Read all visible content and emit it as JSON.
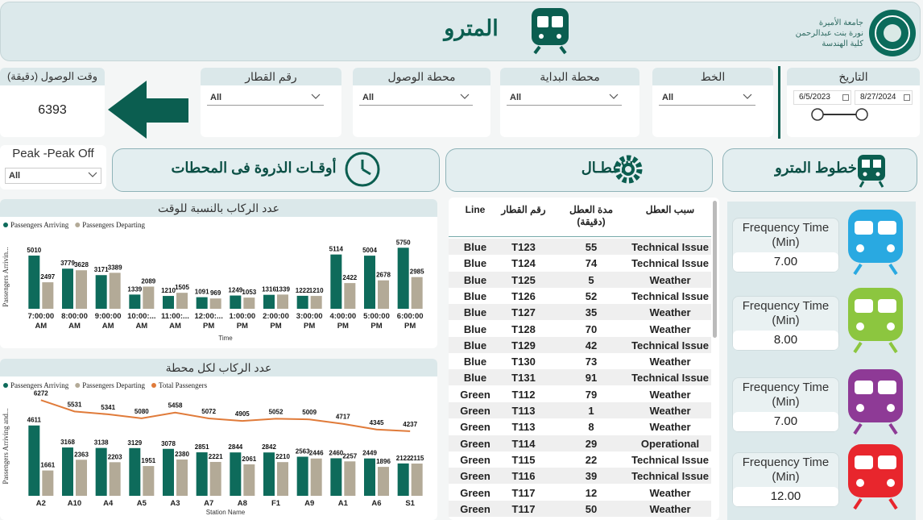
{
  "header": {
    "title": "المترو",
    "logo_lines": [
      "جامعة الأميرة",
      "نورة بنت عبدالرحمن",
      "كلية الهندسة"
    ]
  },
  "kpi": {
    "title": "وقت الوصول (دقيقة)",
    "value": 6393
  },
  "filters": [
    {
      "title": "رقم القطار",
      "value": "All"
    },
    {
      "title": "محطة الوصول",
      "value": "All"
    },
    {
      "title": "محطة البداية",
      "value": "All"
    },
    {
      "title": "الخط",
      "value": "All"
    }
  ],
  "date_filter": {
    "title": "التاريخ",
    "start": "6/5/2023",
    "end": "8/27/2024"
  },
  "peak_filter": {
    "title": "Peak -Peak Off",
    "value": "All"
  },
  "sections": [
    "أوقـات الذروة فى المحطات",
    "الاعطـال",
    "خطوط المترو"
  ],
  "chart_data": [
    {
      "type": "bar",
      "title": "عدد الركاب بالنسبة للوقت",
      "x_label": "Time",
      "y_label": "Passengers Arrivin...",
      "categories": [
        "7:00:00 AM",
        "8:00:00 AM",
        "9:00:00 AM",
        "10:00:... AM",
        "11:00:... AM",
        "12:00:... PM",
        "1:00:00 PM",
        "2:00:00 PM",
        "3:00:00 PM",
        "4:00:00 PM",
        "5:00:00 PM",
        "6:00:00 PM"
      ],
      "series": [
        {
          "name": "Passengers Arriving",
          "color": "#0e6b5b",
          "values": [
            5010,
            3779,
            3171,
            1339,
            1210,
            1091,
            1249,
            1316,
            1222,
            5114,
            5004,
            5750
          ]
        },
        {
          "name": "Passengers Departing",
          "color": "#b3aa97",
          "values": [
            2497,
            3628,
            3389,
            2089,
            1505,
            969,
            1053,
            1339,
            1210,
            2422,
            2678,
            2985
          ]
        }
      ],
      "ylim": [
        0,
        6000
      ]
    },
    {
      "type": "bar",
      "title": "عدد الركاب لكل محطة",
      "x_label": "Station Name",
      "y_label": "Passengers Arriving and...",
      "categories": [
        "A2",
        "A10",
        "A4",
        "A5",
        "A3",
        "A7",
        "A8",
        "F1",
        "A9",
        "A1",
        "A6",
        "S1"
      ],
      "series": [
        {
          "name": "Passengers Arriving",
          "color": "#0e6b5b",
          "values": [
            4611,
            3168,
            3138,
            3129,
            3078,
            2851,
            2844,
            2842,
            2563,
            2460,
            2449,
            2122
          ]
        },
        {
          "name": "Passengers Departing",
          "color": "#b3aa97",
          "values": [
            1661,
            2363,
            2203,
            1951,
            2380,
            2221,
            2061,
            2210,
            2446,
            2257,
            1896,
            2115
          ]
        },
        {
          "name": "Total Passengers",
          "type": "line",
          "color": "#e07b3a",
          "values": [
            6272,
            5531,
            5341,
            5080,
            5458,
            5072,
            4905,
            5052,
            5009,
            4717,
            4345,
            4237
          ]
        }
      ],
      "ylim": [
        0,
        6500
      ]
    }
  ],
  "table": {
    "columns": [
      "Line",
      "رقم القطار",
      "مدة العطل (دقيقة)",
      "سبب العطل"
    ],
    "rows": [
      [
        "Blue",
        "T123",
        55,
        "Technical Issue"
      ],
      [
        "Blue",
        "T124",
        74,
        "Technical Issue"
      ],
      [
        "Blue",
        "T125",
        5,
        "Weather"
      ],
      [
        "Blue",
        "T126",
        52,
        "Technical Issue"
      ],
      [
        "Blue",
        "T127",
        35,
        "Weather"
      ],
      [
        "Blue",
        "T128",
        70,
        "Weather"
      ],
      [
        "Blue",
        "T129",
        42,
        "Technical Issue"
      ],
      [
        "Blue",
        "T130",
        73,
        "Weather"
      ],
      [
        "Blue",
        "T131",
        91,
        "Technical Issue"
      ],
      [
        "Green",
        "T112",
        79,
        "Weather"
      ],
      [
        "Green",
        "T113",
        1,
        "Weather"
      ],
      [
        "Green",
        "T113",
        8,
        "Weather"
      ],
      [
        "Green",
        "T114",
        29,
        "Operational"
      ],
      [
        "Green",
        "T115",
        22,
        "Technical Issue"
      ],
      [
        "Green",
        "T116",
        39,
        "Technical Issue"
      ],
      [
        "Green",
        "T117",
        12,
        "Weather"
      ],
      [
        "Green",
        "T117",
        50,
        "Weather"
      ]
    ]
  },
  "frequency": {
    "label": "Frequency Time (Min)",
    "cards": [
      {
        "value": "7.00",
        "color": "#29a9e1"
      },
      {
        "value": "8.00",
        "color": "#8cc63f"
      },
      {
        "value": "7.00",
        "color": "#8e3a96"
      },
      {
        "value": "12.00",
        "color": "#e8262d"
      }
    ]
  }
}
